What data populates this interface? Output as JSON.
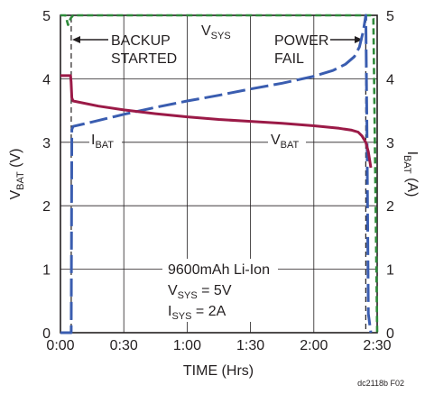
{
  "chart_data": {
    "type": "line",
    "xlabel": "TIME (Hrs)",
    "ylabel_left": {
      "main": "V",
      "sub": "BAT",
      "unit": " (V)"
    },
    "ylabel_right": {
      "main": "I",
      "sub": "BAT",
      "unit": " (A)"
    },
    "x_ticks": [
      {
        "value": 0,
        "label": "0:00"
      },
      {
        "value": 0.5,
        "label": "0:30"
      },
      {
        "value": 1.0,
        "label": "1:00"
      },
      {
        "value": 1.5,
        "label": "1:30"
      },
      {
        "value": 2.0,
        "label": "2:00"
      },
      {
        "value": 2.5,
        "label": "2:30"
      }
    ],
    "y_ticks": [
      "0",
      "1",
      "2",
      "3",
      "4",
      "5"
    ],
    "xlim": [
      0,
      2.5
    ],
    "ylim_left": [
      0,
      5
    ],
    "ylim_right": [
      0,
      5
    ],
    "grid": true,
    "colors": {
      "vbat": "#9b1a47",
      "ibat": "#3a5db0",
      "vsys": "#2e8b3a",
      "marker": "#231f20"
    },
    "series": [
      {
        "name": "VBAT",
        "axis": "left",
        "style": "solid",
        "x": [
          0.0,
          0.08,
          0.084,
          0.09,
          0.1,
          0.3,
          0.5,
          0.75,
          1.0,
          1.25,
          1.5,
          1.75,
          2.0,
          2.2,
          2.3,
          2.35,
          2.38,
          2.41,
          2.43,
          2.45
        ],
        "values": [
          4.05,
          4.05,
          3.95,
          3.7,
          3.65,
          3.57,
          3.51,
          3.45,
          3.4,
          3.36,
          3.33,
          3.3,
          3.26,
          3.22,
          3.19,
          3.16,
          3.1,
          3.0,
          2.85,
          2.6
        ]
      },
      {
        "name": "IBAT",
        "axis": "right",
        "style": "dashed",
        "x": [
          0.0,
          0.085,
          0.09,
          0.1,
          0.25,
          0.5,
          0.75,
          1.0,
          1.25,
          1.5,
          1.75,
          2.0,
          2.15,
          2.25,
          2.32,
          2.36,
          2.39,
          2.41,
          2.42,
          2.43,
          2.45
        ],
        "values": [
          0.0,
          0.0,
          3.2,
          3.25,
          3.32,
          3.44,
          3.55,
          3.65,
          3.74,
          3.84,
          3.93,
          4.04,
          4.13,
          4.23,
          4.35,
          4.5,
          4.75,
          5.0,
          3.0,
          0.3,
          0.0
        ]
      },
      {
        "name": "VSYS",
        "axis": "left",
        "style": "dashed",
        "x": [
          0.0,
          0.04,
          0.06,
          0.08,
          0.1,
          0.5,
          1.0,
          1.5,
          2.0,
          2.4,
          2.45,
          2.47,
          2.5
        ],
        "values": [
          5.0,
          5.0,
          4.85,
          4.95,
          5.0,
          5.0,
          5.0,
          5.0,
          5.0,
          5.0,
          5.0,
          4.95,
          0.0
        ]
      }
    ],
    "markers": [
      {
        "name": "backup-started",
        "x": 0.085,
        "style": "dashed"
      },
      {
        "name": "power-fail",
        "x": 2.41,
        "style": "dashed"
      }
    ],
    "annotations": {
      "backup_line1": "BACKUP",
      "backup_line2": "STARTED",
      "power_line1": "POWER",
      "power_line2": "FAIL",
      "vsys": {
        "main": "V",
        "sub": "SYS"
      },
      "ibat": {
        "main": "I",
        "sub": "BAT"
      },
      "vbat": {
        "main": "V",
        "sub": "BAT"
      },
      "info_line1": "9600mAh Li-Ion",
      "info_line2": {
        "main": "V",
        "sub": "SYS",
        "rest": " = 5V"
      },
      "info_line3": {
        "main": "I",
        "sub": "SYS",
        "rest": " = 2A"
      }
    },
    "figure_id": "dc2118b F02"
  }
}
